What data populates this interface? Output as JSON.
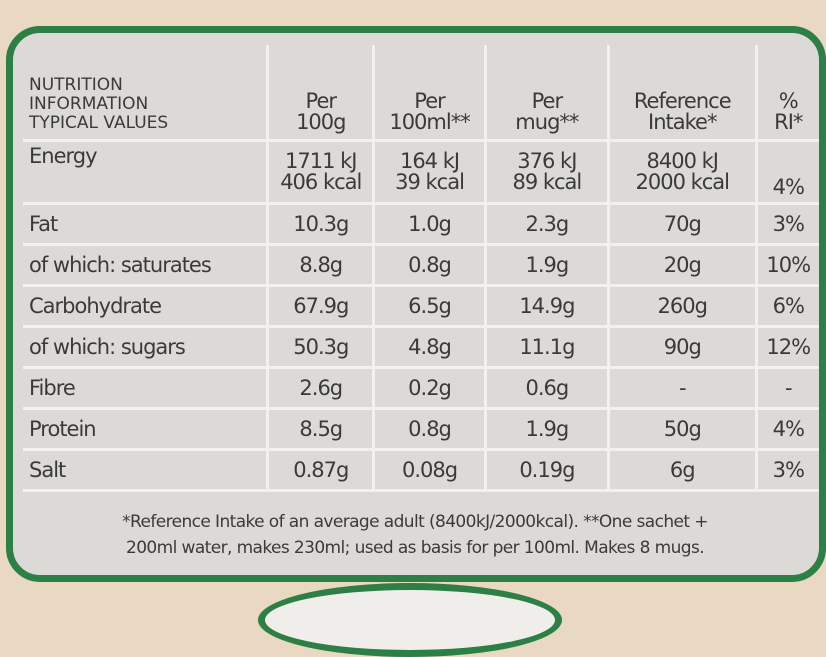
{
  "header": {
    "title_lines": [
      "NUTRITION",
      "INFORMATION",
      "TYPICAL VALUES"
    ],
    "columns": [
      [
        "Per",
        "100g"
      ],
      [
        "Per",
        "100ml**"
      ],
      [
        "Per",
        "mug**"
      ],
      [
        "Reference",
        "Intake*"
      ],
      [
        "%",
        "RI*"
      ]
    ]
  },
  "energy": {
    "label": "Energy",
    "kj": [
      "1711 kJ",
      "164 kJ",
      "376 kJ",
      "8400 kJ"
    ],
    "kcal": [
      "406 kcal",
      "39 kcal",
      "89 kcal",
      "2000 kcal"
    ],
    "ri": "4%"
  },
  "rows": [
    {
      "label": "Fat",
      "values": [
        "10.3g",
        "1.0g",
        "2.3g",
        "70g",
        "3%"
      ]
    },
    {
      "label": "of which: saturates",
      "values": [
        "8.8g",
        "0.8g",
        "1.9g",
        "20g",
        "10%"
      ]
    },
    {
      "label": "Carbohydrate",
      "values": [
        "67.9g",
        "6.5g",
        "14.9g",
        "260g",
        "6%"
      ]
    },
    {
      "label": "of which: sugars",
      "values": [
        "50.3g",
        "4.8g",
        "11.1g",
        "90g",
        "12%"
      ]
    },
    {
      "label": "Fibre",
      "values": [
        "2.6g",
        "0.2g",
        "0.6g",
        "-",
        "-"
      ]
    },
    {
      "label": "Protein",
      "values": [
        "8.5g",
        "0.8g",
        "1.9g",
        "50g",
        "4%"
      ]
    },
    {
      "label": "Salt",
      "values": [
        "0.87g",
        "0.08g",
        "0.19g",
        "6g",
        "3%"
      ]
    }
  ],
  "footnote": [
    "*Reference Intake of an average adult (8400kJ/2000kcal). **One sachet +",
    "200ml water, makes 230ml; used as basis for per 100ml. Makes 8 mugs."
  ],
  "colors": {
    "border": "#2e7f45",
    "panel": "#dcdad6",
    "text": "#3b3a3a",
    "background": "#e9d9c2"
  }
}
